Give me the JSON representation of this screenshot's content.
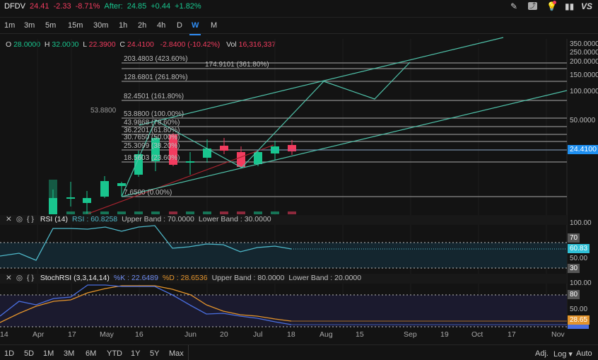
{
  "quote": {
    "symbol": "DFDV",
    "price": "24.41",
    "change": "-2.33",
    "change_pct": "-8.71%",
    "after_label": "After:",
    "after_price": "24.85",
    "after_change": "+0.44",
    "after_pct": "+1.82%"
  },
  "toolbar_icons": [
    "pencil-icon",
    "chart-type-icon",
    "idea-icon",
    "candlestick-icon",
    "compare-vs-icon"
  ],
  "compare_label": "VS",
  "timeframes": [
    "1m",
    "3m",
    "5m",
    "15m",
    "30m",
    "1h",
    "2h",
    "4h",
    "D",
    "W",
    "M"
  ],
  "active_timeframe": "W",
  "ohlc": {
    "o_label": "O",
    "o": "28.0000",
    "h_label": "H",
    "h": "32.0000",
    "l_label": "L",
    "l": "22.3900",
    "c_label": "C",
    "c": "24.4100",
    "chg": "-2.8400 (-10.42%)",
    "vol_label": "Vol",
    "vol": "16,316,337"
  },
  "fib_levels": [
    "203.4803 (423.60%)",
    "174.9101 (361.80%)",
    "128.6801 (261.80%)",
    "82.4501 (161.80%)",
    "53.8800 (100.00%)",
    "43.9868 (78.60%)",
    "36.2201 (61.80%)",
    "30.7650 (50.00%)",
    "25.3099 (38.20%)",
    "18.5603 (23.60%)",
    "7.6500 (0.00%)"
  ],
  "fib_overlap_label": "53.8800",
  "price_axis": [
    "350.0000",
    "250.0000",
    "200.0000",
    "150.0000",
    "100.0000",
    "50.0000"
  ],
  "last_price_badge": "24.4100",
  "rsi": {
    "title": "RSI (14)",
    "value": "RSI : 60.8258",
    "upper": "Upper Band : 70.0000",
    "lower": "Lower Band : 30.0000",
    "axis_top": "100.00",
    "axis_mid": "50.00",
    "badge_upper": "70",
    "badge_value": "60.83",
    "badge_lower": "30",
    "color": "#4fb8c9"
  },
  "stoch": {
    "title": "StochRSI (3,3,14,14)",
    "k": "%K : 22.6489",
    "d": "%D : 28.6536",
    "upper": "Upper Band : 80.0000",
    "lower": "Lower Band : 20.0000",
    "axis_top": "100.00",
    "axis_mid": "50.00",
    "badge_upper": "80",
    "badge_d": "28.65",
    "k_color": "#4a6fe0",
    "d_color": "#e3932b"
  },
  "x_axis": [
    "14",
    "Apr",
    "17",
    "May",
    "16",
    "Jun",
    "20",
    "Jul",
    "18",
    "Aug",
    "15",
    "Sep",
    "19",
    "Oct",
    "17",
    "Nov"
  ],
  "ranges": [
    "1D",
    "5D",
    "1M",
    "3M",
    "6M",
    "YTD",
    "1Y",
    "5Y",
    "Max"
  ],
  "bottom_right": {
    "adj": "Adj.",
    "log": "Log ▾",
    "auto": "Auto"
  },
  "colors": {
    "up": "#19c58e",
    "down": "#f23c5f",
    "accent": "#2f8df5",
    "trend": "#4fc0a8"
  }
}
